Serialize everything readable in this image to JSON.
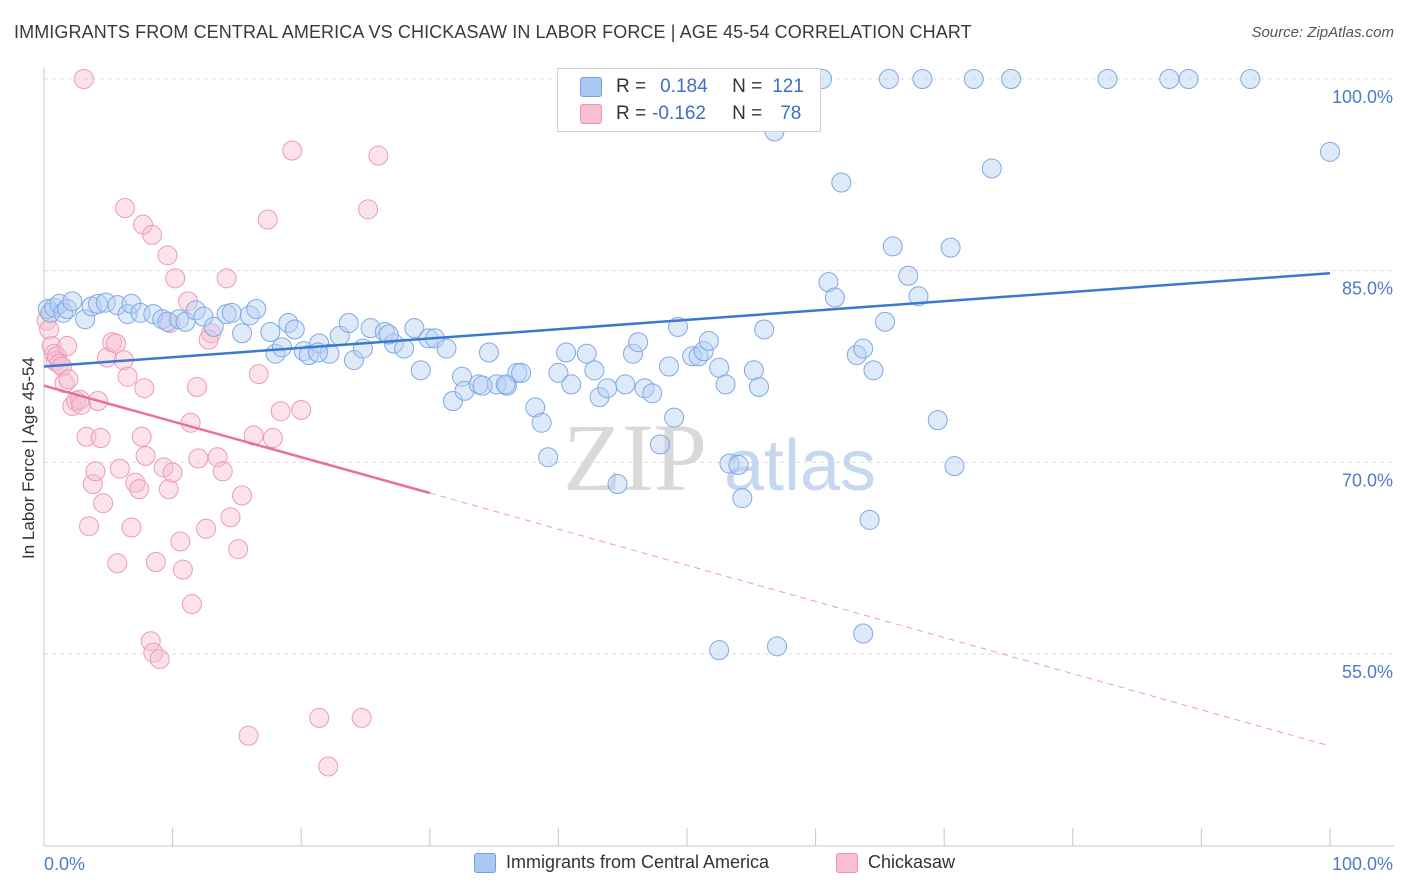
{
  "title": "IMMIGRANTS FROM CENTRAL AMERICA VS CHICKASAW IN LABOR FORCE | AGE 45-54 CORRELATION CHART",
  "source": "Source: ZipAtlas.com",
  "watermark": {
    "zip": "ZIP",
    "atlas": "atlas"
  },
  "legend": {
    "r_label": "R =",
    "n_label": "N =",
    "rows": [
      {
        "r": "0.184",
        "n": "121",
        "color": "#aac8f0",
        "border": "#6f9fe0"
      },
      {
        "r": "-0.162",
        "n": "78",
        "color": "#f7bfd2",
        "border": "#ef93b3"
      }
    ]
  },
  "bottom_legend": [
    "Immigrants from Central America",
    "Chickasaw"
  ],
  "chart_data": {
    "type": "scatter",
    "ylabel": "In Labor Force | Age 45-54",
    "xlabel": "",
    "xlim": [
      0,
      100
    ],
    "ylim": [
      42,
      101.5
    ],
    "x_tick_labels": [
      "0.0%",
      "100.0%"
    ],
    "y_ticks": [
      {
        "value": 100,
        "label": "100.0%"
      },
      {
        "value": 85,
        "label": "85.0%"
      },
      {
        "value": 70,
        "label": "70.0%"
      },
      {
        "value": 55,
        "label": "55.0%"
      }
    ],
    "grid": "horizontal dashed",
    "legend_position": "top-center",
    "series": [
      {
        "name": "Immigrants from Central America",
        "color": "#7ea9e6",
        "trend": {
          "x": [
            0,
            100
          ],
          "y": [
            77.5,
            84.8
          ],
          "line_color": "#3b78d0"
        },
        "points": [
          [
            0.3,
            82.0
          ],
          [
            0.5,
            81.7
          ],
          [
            0.8,
            82.1
          ],
          [
            1.2,
            82.4
          ],
          [
            1.5,
            81.7
          ],
          [
            1.8,
            82.0
          ],
          [
            2.2,
            82.6
          ],
          [
            3.2,
            81.2
          ],
          [
            3.7,
            82.2
          ],
          [
            4.2,
            82.4
          ],
          [
            4.8,
            82.5
          ],
          [
            5.7,
            82.3
          ],
          [
            6.5,
            81.6
          ],
          [
            6.8,
            82.4
          ],
          [
            7.5,
            81.7
          ],
          [
            8.5,
            81.6
          ],
          [
            9.2,
            81.2
          ],
          [
            9.6,
            81.0
          ],
          [
            10.5,
            81.2
          ],
          [
            11.0,
            81.0
          ],
          [
            11.8,
            81.9
          ],
          [
            12.4,
            81.4
          ],
          [
            13.2,
            80.6
          ],
          [
            14.2,
            81.6
          ],
          [
            14.6,
            81.7
          ],
          [
            15.4,
            80.1
          ],
          [
            16.0,
            81.5
          ],
          [
            16.5,
            82.0
          ],
          [
            17.6,
            80.2
          ],
          [
            18.0,
            78.5
          ],
          [
            18.5,
            79.0
          ],
          [
            19.0,
            80.9
          ],
          [
            19.5,
            80.4
          ],
          [
            20.2,
            78.7
          ],
          [
            20.6,
            78.4
          ],
          [
            21.4,
            79.3
          ],
          [
            22.2,
            78.5
          ],
          [
            23.0,
            79.9
          ],
          [
            23.7,
            80.9
          ],
          [
            24.1,
            78.0
          ],
          [
            24.8,
            78.9
          ],
          [
            25.4,
            80.5
          ],
          [
            26.5,
            80.2
          ],
          [
            27.2,
            79.3
          ],
          [
            28.0,
            78.9
          ],
          [
            28.8,
            80.5
          ],
          [
            29.3,
            77.2
          ],
          [
            29.9,
            79.7
          ],
          [
            30.4,
            79.7
          ],
          [
            31.3,
            78.9
          ],
          [
            31.8,
            74.8
          ],
          [
            32.5,
            76.7
          ],
          [
            32.7,
            75.6
          ],
          [
            33.8,
            76.1
          ],
          [
            34.6,
            78.6
          ],
          [
            35.2,
            76.1
          ],
          [
            36.0,
            76.0
          ],
          [
            36.8,
            77.0
          ],
          [
            37.1,
            77.0
          ],
          [
            38.2,
            74.3
          ],
          [
            38.7,
            73.1
          ],
          [
            39.2,
            70.4
          ],
          [
            40.0,
            77.0
          ],
          [
            40.6,
            78.6
          ],
          [
            41.0,
            76.1
          ],
          [
            42.2,
            78.5
          ],
          [
            42.8,
            77.2
          ],
          [
            43.2,
            75.1
          ],
          [
            43.8,
            75.8
          ],
          [
            45.2,
            76.1
          ],
          [
            45.8,
            78.5
          ],
          [
            46.2,
            79.4
          ],
          [
            46.7,
            75.8
          ],
          [
            47.3,
            75.4
          ],
          [
            47.9,
            71.4
          ],
          [
            48.6,
            77.5
          ],
          [
            49.0,
            73.5
          ],
          [
            49.3,
            80.6
          ],
          [
            50.4,
            78.3
          ],
          [
            50.9,
            78.3
          ],
          [
            51.3,
            78.7
          ],
          [
            51.7,
            79.5
          ],
          [
            52.5,
            77.4
          ],
          [
            53.0,
            76.1
          ],
          [
            53.3,
            69.9
          ],
          [
            54.0,
            69.8
          ],
          [
            54.3,
            67.2
          ],
          [
            55.2,
            77.2
          ],
          [
            55.6,
            75.9
          ],
          [
            56.0,
            80.4
          ],
          [
            44.6,
            68.3
          ],
          [
            56.8,
            95.9
          ],
          [
            60.5,
            100.0
          ],
          [
            61.0,
            84.1
          ],
          [
            61.5,
            82.9
          ],
          [
            62.0,
            91.9
          ],
          [
            63.2,
            78.4
          ],
          [
            63.7,
            78.9
          ],
          [
            64.2,
            65.5
          ],
          [
            64.5,
            77.2
          ],
          [
            65.4,
            81.0
          ],
          [
            65.7,
            100.0
          ],
          [
            66.0,
            86.9
          ],
          [
            67.2,
            84.6
          ],
          [
            68.0,
            83.0
          ],
          [
            68.3,
            100.0
          ],
          [
            69.5,
            73.3
          ],
          [
            70.5,
            86.8
          ],
          [
            70.8,
            69.7
          ],
          [
            72.3,
            100.0
          ],
          [
            73.7,
            93.0
          ],
          [
            75.2,
            100.0
          ],
          [
            82.7,
            100.0
          ],
          [
            87.5,
            100.0
          ],
          [
            89.0,
            100.0
          ],
          [
            93.8,
            100.0
          ],
          [
            100.0,
            94.3
          ],
          [
            56.4,
            100.0
          ],
          [
            50.5,
            100.0
          ],
          [
            56.7,
            100.0
          ],
          [
            52.5,
            55.3
          ],
          [
            57.0,
            55.6
          ],
          [
            63.7,
            56.6
          ],
          [
            21.3,
            78.6
          ],
          [
            26.8,
            80.0
          ],
          [
            34.1,
            76.0
          ],
          [
            35.9,
            76.1
          ]
        ]
      },
      {
        "name": "Chickasaw",
        "color": "#f2a3bf",
        "trend": {
          "x": [
            0,
            30
          ],
          "y": [
            76.0,
            67.6
          ],
          "line_color": "#e8709a",
          "dashed_to": [
            100,
            47.8
          ]
        },
        "points": [
          [
            0.2,
            81.1
          ],
          [
            0.4,
            80.4
          ],
          [
            0.6,
            79.1
          ],
          [
            0.8,
            78.5
          ],
          [
            0.9,
            77.9
          ],
          [
            1.0,
            78.3
          ],
          [
            1.2,
            77.7
          ],
          [
            1.4,
            77.5
          ],
          [
            1.6,
            76.2
          ],
          [
            1.8,
            79.1
          ],
          [
            1.9,
            76.5
          ],
          [
            2.2,
            74.4
          ],
          [
            2.5,
            74.8
          ],
          [
            2.8,
            74.9
          ],
          [
            2.9,
            74.5
          ],
          [
            3.3,
            72.0
          ],
          [
            3.5,
            65.0
          ],
          [
            3.8,
            68.3
          ],
          [
            4.0,
            69.3
          ],
          [
            4.4,
            71.9
          ],
          [
            4.6,
            66.8
          ],
          [
            4.9,
            78.2
          ],
          [
            5.3,
            79.4
          ],
          [
            5.6,
            79.3
          ],
          [
            5.7,
            62.1
          ],
          [
            5.9,
            69.5
          ],
          [
            6.2,
            78.0
          ],
          [
            6.5,
            76.7
          ],
          [
            6.8,
            64.9
          ],
          [
            7.1,
            68.4
          ],
          [
            7.4,
            67.9
          ],
          [
            7.6,
            72.0
          ],
          [
            7.8,
            75.8
          ],
          [
            7.9,
            70.5
          ],
          [
            8.3,
            56.0
          ],
          [
            8.5,
            55.1
          ],
          [
            8.7,
            62.2
          ],
          [
            9.0,
            54.6
          ],
          [
            9.3,
            69.6
          ],
          [
            9.7,
            67.9
          ],
          [
            10.0,
            69.2
          ],
          [
            10.6,
            63.8
          ],
          [
            10.8,
            61.6
          ],
          [
            11.4,
            73.1
          ],
          [
            11.5,
            58.9
          ],
          [
            11.9,
            75.9
          ],
          [
            12.0,
            70.3
          ],
          [
            12.6,
            64.8
          ],
          [
            13.0,
            80.1
          ],
          [
            13.5,
            70.4
          ],
          [
            13.9,
            69.3
          ],
          [
            14.2,
            84.4
          ],
          [
            14.5,
            65.7
          ],
          [
            15.1,
            63.2
          ],
          [
            15.4,
            67.4
          ],
          [
            15.9,
            48.6
          ],
          [
            16.3,
            72.1
          ],
          [
            16.7,
            76.9
          ],
          [
            17.4,
            89.0
          ],
          [
            17.8,
            71.9
          ],
          [
            18.4,
            74.0
          ],
          [
            19.3,
            94.4
          ],
          [
            20.0,
            74.1
          ],
          [
            21.4,
            50.0
          ],
          [
            22.1,
            46.2
          ],
          [
            24.7,
            50.0
          ],
          [
            25.2,
            89.8
          ],
          [
            26.0,
            94.0
          ],
          [
            6.3,
            89.9
          ],
          [
            7.7,
            88.6
          ],
          [
            8.4,
            87.8
          ],
          [
            9.6,
            86.2
          ],
          [
            10.2,
            84.4
          ],
          [
            11.2,
            82.6
          ],
          [
            12.8,
            79.6
          ],
          [
            9.8,
            80.9
          ],
          [
            4.2,
            74.8
          ],
          [
            3.1,
            100.0
          ]
        ]
      }
    ]
  }
}
